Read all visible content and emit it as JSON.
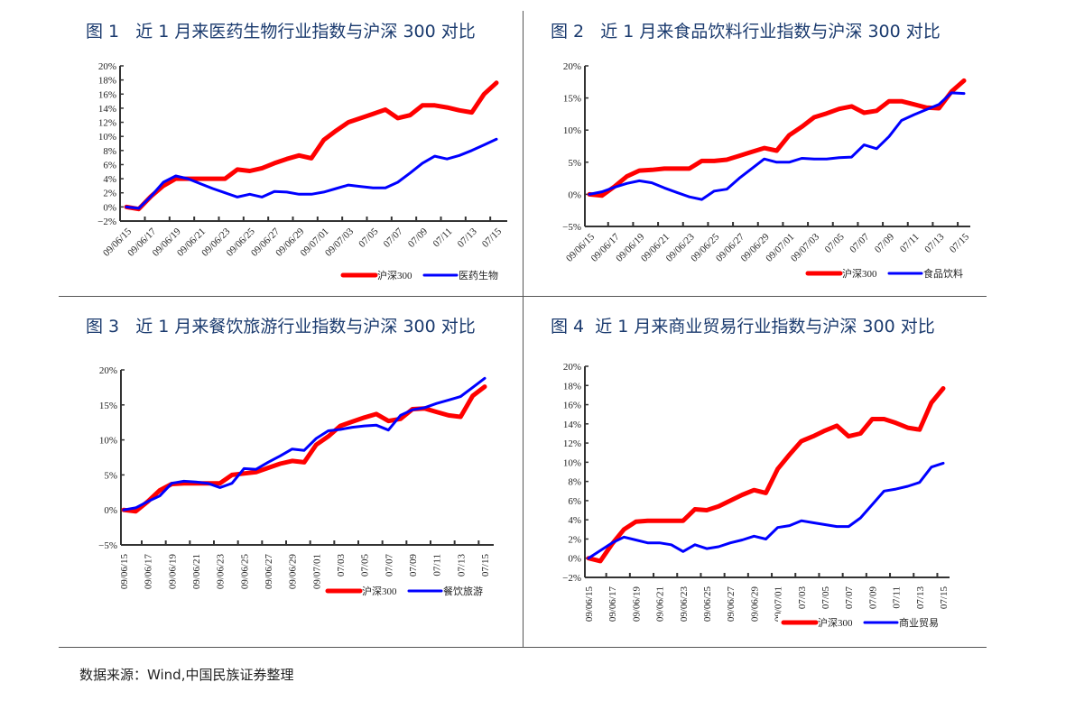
{
  "source": "数据来源：Wind,中国民族证券整理",
  "colors": {
    "hs300": "#ff0000",
    "sector": "#0000ff",
    "title": "#1a3a6e"
  },
  "chart_data": [
    {
      "type": "line",
      "title": "图 1   近 1 月来医药生物行业指数与沪深 300 对比",
      "ylim": [
        -2,
        20
      ],
      "ystep": 2,
      "ytick_format": "percent",
      "x": [
        "09/06/15",
        "09/06/16",
        "09/06/17",
        "09/06/18",
        "09/06/19",
        "09/06/20",
        "09/06/21",
        "09/06/22",
        "09/06/23",
        "09/06/24",
        "09/06/25",
        "09/06/26",
        "09/06/27",
        "09/06/28",
        "09/06/29",
        "09/06/30",
        "09/07/01",
        "09/07/02",
        "09/07/03",
        "09/07/04",
        "09/07/05",
        "09/07/06",
        "09/07/07",
        "09/07/08",
        "09/07/09",
        "09/07/10",
        "09/07/11",
        "09/07/12",
        "09/07/13",
        "09/07/14",
        "09/07/15"
      ],
      "xtick_labels": [
        "09/06/15",
        "09/06/17",
        "09/06/19",
        "09/06/21",
        "09/06/23",
        "09/06/25",
        "09/06/27",
        "09/06/29",
        "09/07/01",
        "09/07/03",
        "07/05",
        "07/07",
        "07/09",
        "07/11",
        "07/13",
        "07/15"
      ],
      "legend": "bottom-right",
      "series": [
        {
          "name": "沪深300",
          "color": "#ff0000",
          "values": [
            0,
            -0.3,
            1.5,
            3,
            4,
            4,
            4,
            4,
            4,
            5.3,
            5.1,
            5.5,
            6.2,
            6.8,
            7.3,
            6.9,
            9.5,
            10.8,
            12,
            12.6,
            13.2,
            13.8,
            12.6,
            13,
            14.4,
            14.4,
            14.1,
            13.7,
            13.4,
            16,
            17.6
          ]
        },
        {
          "name": "医药生物",
          "color": "#0000ff",
          "values": [
            0,
            -0.2,
            1.5,
            3.5,
            4.4,
            4,
            3.3,
            2.6,
            2,
            1.4,
            1.8,
            1.4,
            2.2,
            2.1,
            1.8,
            1.8,
            2.1,
            2.6,
            3.1,
            2.9,
            2.7,
            2.7,
            3.5,
            4.8,
            6.2,
            7.2,
            6.8,
            7.3,
            8,
            8.8,
            9.6
          ]
        }
      ]
    },
    {
      "type": "line",
      "title": "图 2   近 1 月来食品饮料行业指数与沪深 300 对比",
      "ylim": [
        -5,
        20
      ],
      "ystep": 5,
      "ytick_format": "percent",
      "x": [
        "09/06/15",
        "09/06/16",
        "09/06/17",
        "09/06/18",
        "09/06/19",
        "09/06/20",
        "09/06/21",
        "09/06/22",
        "09/06/23",
        "09/06/24",
        "09/06/25",
        "09/06/26",
        "09/06/27",
        "09/06/28",
        "09/06/29",
        "09/06/30",
        "09/07/01",
        "09/07/02",
        "09/07/03",
        "09/07/04",
        "09/07/05",
        "09/07/06",
        "09/07/07",
        "09/07/08",
        "09/07/09",
        "09/07/10",
        "09/07/11",
        "09/07/12",
        "09/07/13",
        "09/07/14",
        "09/07/15"
      ],
      "xtick_labels": [
        "09/06/15",
        "09/06/17",
        "09/06/19",
        "09/06/21",
        "09/06/23",
        "09/06/25",
        "09/06/27",
        "09/06/29",
        "09/07/01",
        "09/07/03",
        "07/05",
        "07/07",
        "07/09",
        "07/11",
        "07/13",
        "07/15"
      ],
      "legend": "bottom-right",
      "series": [
        {
          "name": "沪深300",
          "color": "#ff0000",
          "values": [
            0,
            -0.2,
            1.2,
            2.8,
            3.7,
            3.8,
            4,
            4,
            4,
            5.2,
            5.2,
            5.4,
            6,
            6.6,
            7.2,
            6.8,
            9.2,
            10.5,
            12,
            12.6,
            13.3,
            13.7,
            12.7,
            13,
            14.5,
            14.5,
            14,
            13.5,
            13.4,
            16,
            17.7
          ]
        },
        {
          "name": "食品饮料",
          "color": "#0000ff",
          "values": [
            0,
            0.4,
            1.1,
            1.7,
            2.1,
            1.8,
            1,
            0.3,
            -0.4,
            -0.8,
            0.5,
            0.8,
            2.5,
            4,
            5.5,
            5,
            5,
            5.6,
            5.5,
            5.5,
            5.7,
            5.8,
            7.7,
            7.1,
            9,
            11.5,
            12.4,
            13.2,
            14,
            15.8,
            15.7
          ]
        }
      ]
    },
    {
      "type": "line",
      "title": "图 3   近 1 月来餐饮旅游行业指数与沪深 300 对比",
      "ylim": [
        -5,
        20
      ],
      "ystep": 5,
      "ytick_format": "percent",
      "x": [
        "09/06/15",
        "09/06/16",
        "09/06/17",
        "09/06/18",
        "09/06/19",
        "09/06/20",
        "09/06/21",
        "09/06/22",
        "09/06/23",
        "09/06/24",
        "09/06/25",
        "09/06/26",
        "09/06/27",
        "09/06/28",
        "09/06/29",
        "09/06/30",
        "09/07/01",
        "09/07/02",
        "09/07/03",
        "09/07/04",
        "09/07/05",
        "09/07/06",
        "09/07/07",
        "09/07/08",
        "09/07/09",
        "09/07/10",
        "09/07/11",
        "09/07/12",
        "09/07/13",
        "09/07/14",
        "09/07/15"
      ],
      "xtick_labels": [
        "09/06/15",
        "09/06/17",
        "09/06/19",
        "09/06/21",
        "09/06/23",
        "09/06/25",
        "09/06/27",
        "09/06/29",
        "09/07/01",
        "07/03",
        "07/05",
        "07/07",
        "07/09",
        "07/11",
        "07/13",
        "07/15"
      ],
      "legend": "bottom-right",
      "series": [
        {
          "name": "沪深300",
          "color": "#ff0000",
          "values": [
            0,
            -0.2,
            1.2,
            2.8,
            3.7,
            3.8,
            3.8,
            3.8,
            3.8,
            5,
            5.2,
            5.4,
            6,
            6.6,
            7,
            6.8,
            9.3,
            10.5,
            12,
            12.6,
            13.2,
            13.7,
            12.7,
            13,
            14.4,
            14.5,
            14,
            13.5,
            13.3,
            16.3,
            17.6
          ]
        },
        {
          "name": "餐饮旅游",
          "color": "#0000ff",
          "values": [
            0,
            0.3,
            1.2,
            2,
            3.8,
            4.1,
            4,
            3.8,
            3.2,
            3.8,
            5.9,
            5.8,
            6.8,
            7.7,
            8.7,
            8.5,
            10.2,
            11.3,
            11.5,
            11.8,
            12,
            12.1,
            11.4,
            13.5,
            14.3,
            14.6,
            15.2,
            15.7,
            16.2,
            17.5,
            18.8
          ]
        }
      ]
    },
    {
      "type": "line",
      "title": "图 4  近 1 月来商业贸易行业指数与沪深 300 对比",
      "ylim": [
        -2,
        20
      ],
      "ystep": 2,
      "ytick_format": "percent",
      "x": [
        "09/06/15",
        "09/06/16",
        "09/06/17",
        "09/06/18",
        "09/06/19",
        "09/06/20",
        "09/06/21",
        "09/06/22",
        "09/06/23",
        "09/06/24",
        "09/06/25",
        "09/06/26",
        "09/06/27",
        "09/06/28",
        "09/06/29",
        "09/06/30",
        "09/07/01",
        "09/07/02",
        "09/07/03",
        "09/07/04",
        "09/07/05",
        "09/07/06",
        "09/07/07",
        "09/07/08",
        "09/07/09",
        "09/07/10",
        "09/07/11",
        "09/07/12",
        "09/07/13",
        "09/07/14",
        "09/07/15"
      ],
      "xtick_labels": [
        "09/06/15",
        "09/06/17",
        "09/06/19",
        "09/06/21",
        "09/06/23",
        "09/06/25",
        "09/06/27",
        "09/06/29",
        "09/07/01",
        "07/03",
        "07/05",
        "07/07",
        "07/09",
        "07/11",
        "07/13",
        "07/15"
      ],
      "legend": "bottom-right",
      "series": [
        {
          "name": "沪深300",
          "color": "#ff0000",
          "values": [
            0,
            -0.3,
            1.5,
            3,
            3.8,
            3.9,
            3.9,
            3.9,
            3.9,
            5.1,
            5,
            5.4,
            6,
            6.6,
            7.1,
            6.8,
            9.3,
            10.8,
            12.2,
            12.7,
            13.3,
            13.8,
            12.7,
            13,
            14.5,
            14.5,
            14.1,
            13.6,
            13.4,
            16.2,
            17.7
          ]
        },
        {
          "name": "商业贸易",
          "color": "#0000ff",
          "values": [
            0,
            0.8,
            1.6,
            2.2,
            1.9,
            1.6,
            1.6,
            1.4,
            0.7,
            1.4,
            1,
            1.2,
            1.6,
            1.9,
            2.3,
            2,
            3.2,
            3.4,
            3.9,
            3.7,
            3.5,
            3.3,
            3.3,
            4.2,
            5.6,
            7,
            7.2,
            7.5,
            7.9,
            9.5,
            9.9
          ]
        }
      ]
    }
  ]
}
